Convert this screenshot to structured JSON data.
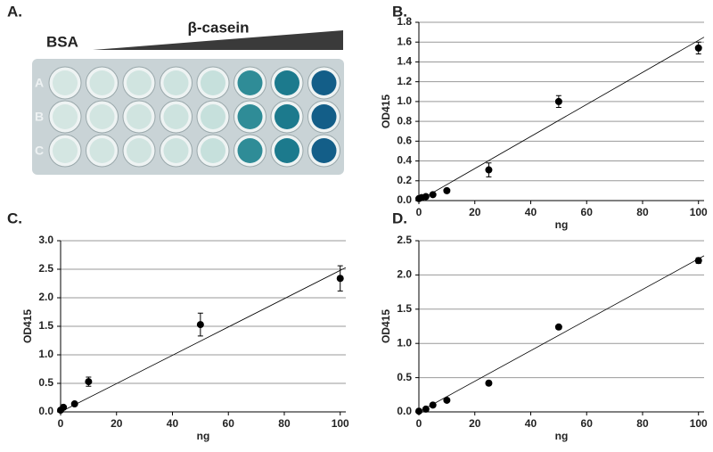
{
  "panel_a": {
    "label": "A.",
    "bsa": "BSA",
    "casein": "β-casein",
    "rows": [
      "A",
      "B",
      "C"
    ]
  },
  "chart_data": [
    {
      "type": "scatter",
      "panel": "B.",
      "x_label": "ng",
      "y_label": "OD415",
      "x": [
        0,
        1,
        2.5,
        5,
        10,
        25,
        50,
        100
      ],
      "values": [
        0.02,
        0.03,
        0.04,
        0.06,
        0.1,
        0.31,
        1.0,
        1.54
      ],
      "errors": [
        0.01,
        0.01,
        0.01,
        0.01,
        0.01,
        0.07,
        0.06,
        0.06
      ],
      "color": "#000000",
      "fit_line": {
        "x": [
          0,
          102
        ],
        "y": [
          0,
          1.65
        ]
      },
      "xlim": [
        0,
        102
      ],
      "xticks": [
        0,
        20,
        40,
        60,
        80,
        100
      ],
      "ylim": [
        0,
        1.8
      ],
      "yticks": [
        {
          "value": 0,
          "label": "0.0"
        },
        0.2,
        0.4,
        0.6,
        0.8,
        {
          "value": 1,
          "label": "1.0"
        },
        1.2,
        1.4,
        1.6,
        1.8
      ],
      "grid": true
    },
    {
      "type": "scatter",
      "panel": "C.",
      "x_label": "ng",
      "y_label": "OD415",
      "x": [
        0,
        1,
        5,
        10,
        50,
        100
      ],
      "values": [
        0.03,
        0.08,
        0.14,
        0.53,
        1.53,
        2.34
      ],
      "errors": [
        0.01,
        0.01,
        0.02,
        0.08,
        0.2,
        0.22
      ],
      "color": "#000000",
      "fit_line": {
        "x": [
          0,
          102
        ],
        "y": [
          0,
          2.53
        ]
      },
      "xlim": [
        0,
        102
      ],
      "xticks": [
        0,
        20,
        40,
        60,
        80,
        100
      ],
      "ylim": [
        0,
        3
      ],
      "yticks": [
        {
          "value": 0,
          "label": "0.0"
        },
        0.5,
        {
          "value": 1,
          "label": "1.0"
        },
        1.5,
        {
          "value": 2,
          "label": "2.0"
        },
        2.5,
        {
          "value": 3,
          "label": "3.0"
        }
      ],
      "grid": true
    },
    {
      "type": "scatter",
      "panel": "D.",
      "x_label": "ng",
      "y_label": "OD415",
      "x": [
        0,
        2.5,
        5,
        10,
        25,
        50,
        100
      ],
      "values": [
        0.01,
        0.04,
        0.1,
        0.17,
        0.42,
        1.24,
        2.21
      ],
      "errors": [
        0.01,
        0.01,
        0.01,
        0.01,
        0.02,
        0.03,
        0.04
      ],
      "color": "#000000",
      "fit_line": {
        "x": [
          0,
          102
        ],
        "y": [
          0,
          2.28
        ]
      },
      "xlim": [
        0,
        102
      ],
      "xticks": [
        0,
        20,
        40,
        60,
        80,
        100
      ],
      "ylim": [
        0,
        2.5
      ],
      "yticks": [
        {
          "value": 0,
          "label": "0.0"
        },
        0.5,
        {
          "value": 1,
          "label": "1.0"
        },
        1.5,
        {
          "value": 2,
          "label": "2.0"
        },
        2.5
      ],
      "grid": true
    }
  ]
}
